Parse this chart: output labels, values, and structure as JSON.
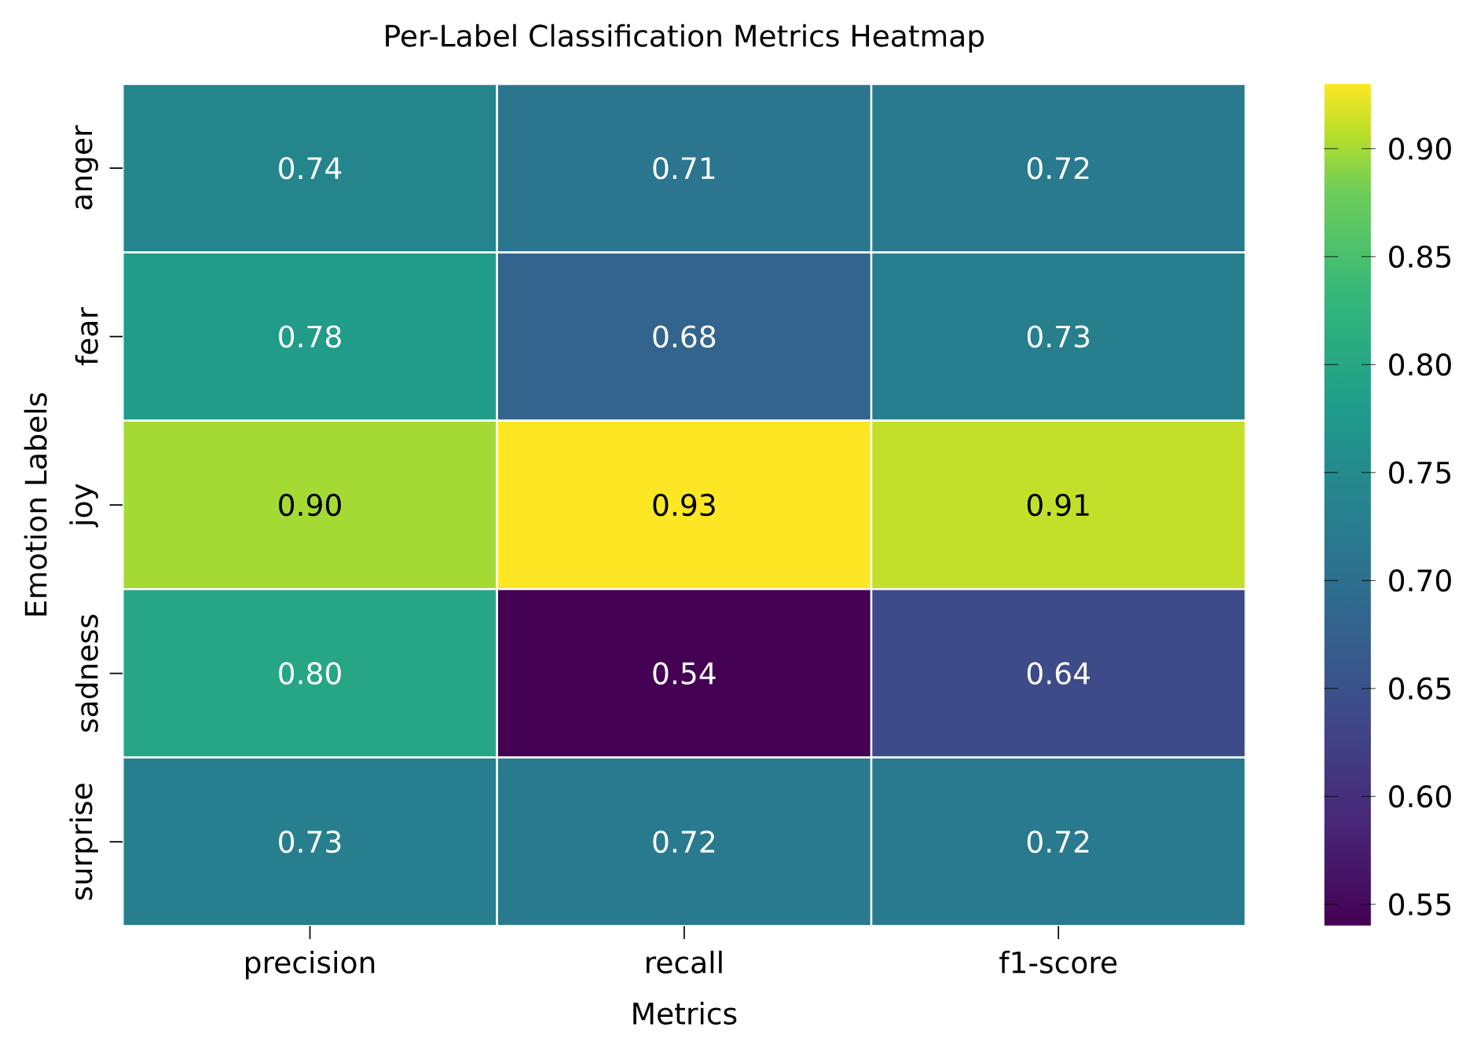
{
  "chart_data": {
    "type": "heatmap",
    "title": "Per-Label Classification Metrics Heatmap",
    "xlabel": "Metrics",
    "ylabel": "Emotion Labels",
    "categories": [
      "precision",
      "recall",
      "f1-score"
    ],
    "y_categories": [
      "anger",
      "fear",
      "joy",
      "sadness",
      "surprise"
    ],
    "cells": [
      [
        0.74,
        0.71,
        0.72
      ],
      [
        0.78,
        0.68,
        0.73
      ],
      [
        0.9,
        0.93,
        0.91
      ],
      [
        0.8,
        0.54,
        0.64
      ],
      [
        0.73,
        0.72,
        0.72
      ]
    ],
    "cell_labels": [
      [
        "0.74",
        "0.71",
        "0.72"
      ],
      [
        "0.78",
        "0.68",
        "0.73"
      ],
      [
        "0.90",
        "0.93",
        "0.91"
      ],
      [
        "0.80",
        "0.54",
        "0.64"
      ],
      [
        "0.73",
        "0.72",
        "0.72"
      ]
    ],
    "clim": [
      0.54,
      0.93
    ],
    "cticks": [
      0.55,
      {
        "value": 0.6,
        "label": "0.60"
      },
      0.65,
      {
        "value": 0.7,
        "label": "0.70"
      },
      0.75,
      {
        "value": 0.8,
        "label": "0.80"
      },
      0.85,
      {
        "value": 0.9,
        "label": "0.90"
      }
    ]
  }
}
